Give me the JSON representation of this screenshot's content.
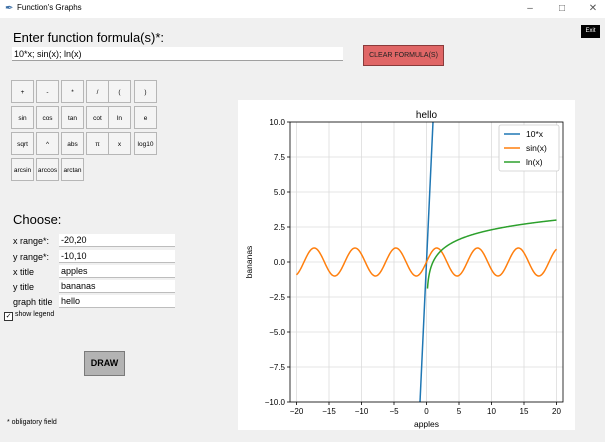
{
  "window": {
    "title": "Function's Graphs",
    "app_icon": "feather-icon",
    "minimize": "–",
    "maximize": "□",
    "close": "✕"
  },
  "exit_label": "Exit",
  "formula_label": "Enter function formula(s)*:",
  "formula_value": "10*x; sin(x); ln(x)",
  "clear_label": "CLEAR FORMULA(S)",
  "keypad": [
    [
      "+",
      "-",
      "*",
      "/",
      "(",
      ")"
    ],
    [
      "sin",
      "cos",
      "tan",
      "cot",
      "ln",
      "e"
    ],
    [
      "sqrt",
      "^",
      "abs",
      "π",
      "x",
      "log10"
    ],
    [
      "arcsin",
      "arccos",
      "arctan"
    ]
  ],
  "choose_label": "Choose:",
  "fields": [
    {
      "label": "x range*:",
      "value": "-20,20"
    },
    {
      "label": "y range*:",
      "value": "-10,10"
    },
    {
      "label": "x title",
      "value": "apples"
    },
    {
      "label": "y title",
      "value": "bananas"
    },
    {
      "label": "graph title",
      "value": "hello"
    }
  ],
  "show_legend": {
    "label": "show legend",
    "checked": true,
    "mark": "✓"
  },
  "draw_label": "DRAW",
  "footnote": "* obligatory field",
  "chart_data": {
    "type": "line",
    "title": "hello",
    "xlabel": "apples",
    "ylabel": "bananas",
    "xlim": [
      -21,
      21
    ],
    "ylim": [
      -10,
      10
    ],
    "x_ticks": [
      -20,
      -15,
      -10,
      -5,
      0,
      5,
      10,
      15,
      20
    ],
    "x_tick_labels": [
      "−20",
      "−15",
      "−10",
      "−5",
      "0",
      "5",
      "10",
      "15",
      "20"
    ],
    "y_ticks": [
      -10,
      -7.5,
      -5,
      -2.5,
      0,
      2.5,
      5,
      7.5,
      10
    ],
    "y_tick_labels": [
      "−10.0",
      "−7.5",
      "−5.0",
      "−2.5",
      "0.0",
      "2.5",
      "5.0",
      "7.5",
      "10.0"
    ],
    "grid": true,
    "legend_position": "top-right",
    "series": [
      {
        "name": "10*x",
        "color": "#1f77b4",
        "x_range": [
          -1,
          1
        ]
      },
      {
        "name": "sin(x)",
        "color": "#ff7f0e",
        "x_range": [
          -20,
          20
        ]
      },
      {
        "name": "ln(x)",
        "color": "#2ca02c",
        "x_range": [
          0.15,
          20
        ]
      }
    ]
  }
}
